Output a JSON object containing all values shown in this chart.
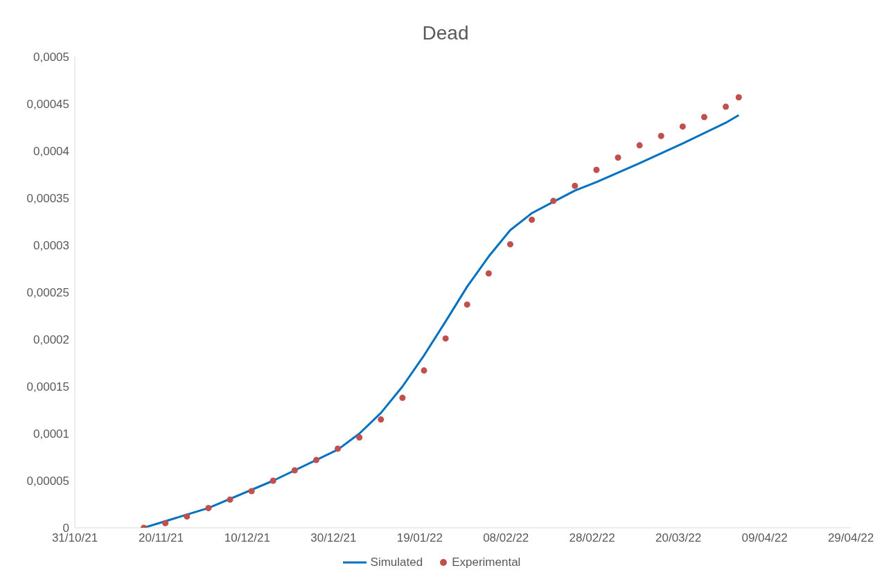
{
  "chart_data": {
    "type": "line",
    "title": "Dead",
    "xlim": [
      "2021-10-31",
      "2022-04-29"
    ],
    "xticks": [
      {
        "value": "2021-10-31",
        "label": "31/10/21"
      },
      {
        "value": "2021-11-20",
        "label": "20/11/21"
      },
      {
        "value": "2021-12-10",
        "label": "10/12/21"
      },
      {
        "value": "2021-12-30",
        "label": "30/12/21"
      },
      {
        "value": "2022-01-19",
        "label": "19/01/22"
      },
      {
        "value": "2022-02-08",
        "label": "08/02/22"
      },
      {
        "value": "2022-02-28",
        "label": "28/02/22"
      },
      {
        "value": "2022-03-20",
        "label": "20/03/22"
      },
      {
        "value": "2022-04-09",
        "label": "09/04/22"
      },
      {
        "value": "2022-04-29",
        "label": "29/04/22"
      }
    ],
    "ylim": [
      0,
      0.0005
    ],
    "yticks": [
      0,
      {
        "value": 5e-05,
        "label": "0,00005"
      },
      {
        "value": 0.0001,
        "label": "0,0001"
      },
      {
        "value": 0.00015,
        "label": "0,00015"
      },
      {
        "value": 0.0002,
        "label": "0,0002"
      },
      {
        "value": 0.00025,
        "label": "0,00025"
      },
      {
        "value": 0.0003,
        "label": "0,0003"
      },
      {
        "value": 0.00035,
        "label": "0,00035"
      },
      {
        "value": 0.0004,
        "label": "0,0004"
      },
      {
        "value": 0.00045,
        "label": "0,00045"
      },
      {
        "value": 0.0005,
        "label": "0,0005"
      }
    ],
    "grid": false,
    "legend": "bottom",
    "series": [
      {
        "name": "Simulated",
        "color": "#0070c0",
        "marker": "none",
        "line_style": "solid",
        "x": [
          "2021-11-16",
          "2021-12-01",
          "2021-12-16",
          "2021-12-31",
          "2022-01-05",
          "2022-01-10",
          "2022-01-15",
          "2022-01-20",
          "2022-01-25",
          "2022-01-30",
          "2022-02-04",
          "2022-02-09",
          "2022-02-14",
          "2022-02-19",
          "2022-02-24",
          "2022-03-01",
          "2022-03-11",
          "2022-03-21",
          "2022-03-31",
          "2022-04-03"
        ],
        "values": [
          0,
          2.1e-05,
          5e-05,
          8.3e-05,
          0.0001,
          0.000122,
          0.00015,
          0.000183,
          0.000219,
          0.000256,
          0.000288,
          0.000316,
          0.000334,
          0.000346,
          0.000358,
          0.000367,
          0.000387,
          0.000408,
          0.00043,
          0.000438
        ]
      },
      {
        "name": "Experimental",
        "type": "scatter",
        "color": "#c0504d",
        "marker": "circle",
        "x": [
          "2021-11-16",
          "2021-11-21",
          "2021-11-26",
          "2021-12-01",
          "2021-12-06",
          "2021-12-11",
          "2021-12-16",
          "2021-12-21",
          "2021-12-26",
          "2021-12-31",
          "2022-01-05",
          "2022-01-10",
          "2022-01-15",
          "2022-01-20",
          "2022-01-25",
          "2022-01-30",
          "2022-02-04",
          "2022-02-09",
          "2022-02-14",
          "2022-02-19",
          "2022-02-24",
          "2022-03-01",
          "2022-03-06",
          "2022-03-11",
          "2022-03-16",
          "2022-03-21",
          "2022-03-26",
          "2022-03-31",
          "2022-04-03"
        ],
        "values": [
          0,
          5e-06,
          1.2e-05,
          2.1e-05,
          3e-05,
          3.9e-05,
          5e-05,
          6.1e-05,
          7.2e-05,
          8.4e-05,
          9.6e-05,
          0.000115,
          0.000138,
          0.000167,
          0.000201,
          0.000237,
          0.00027,
          0.000301,
          0.000327,
          0.000347,
          0.000363,
          0.00038,
          0.000393,
          0.000406,
          0.000416,
          0.000426,
          0.000436,
          0.000447,
          0.000457
        ]
      }
    ]
  }
}
